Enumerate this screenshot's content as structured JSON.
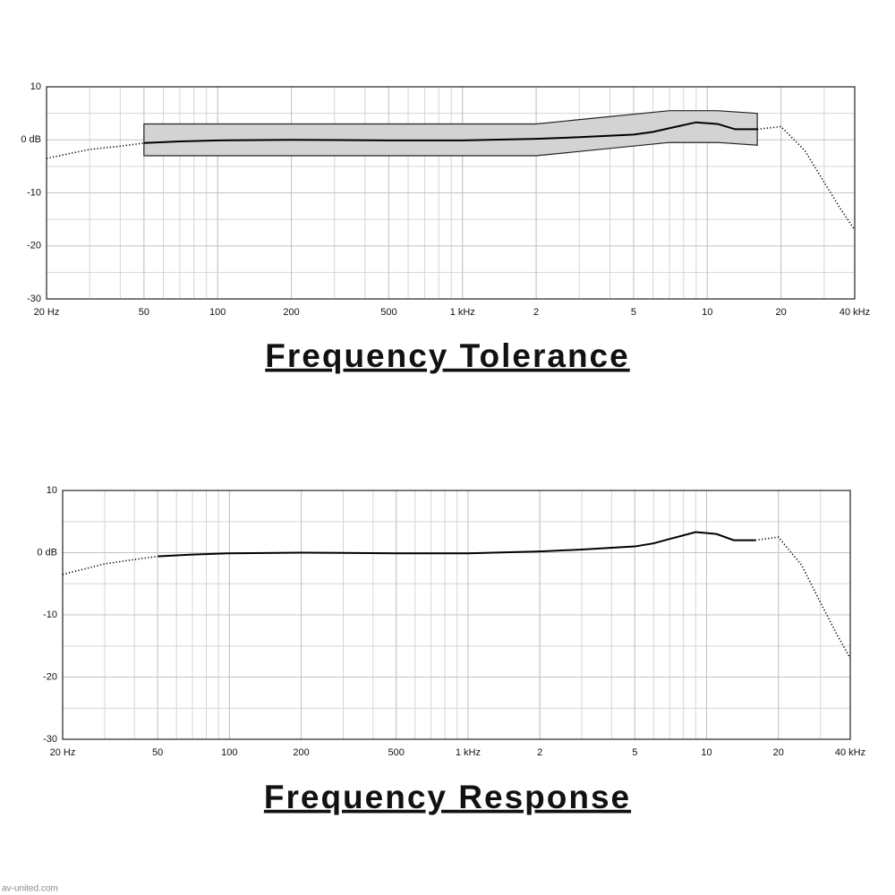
{
  "chart_data": [
    {
      "type": "line",
      "title": "Frequency Tolerance",
      "xscale": "log",
      "xlim": [
        20,
        40000
      ],
      "ylim": [
        -30,
        10
      ],
      "xticks": [
        {
          "value": 20,
          "label": "20 Hz"
        },
        50,
        100,
        200,
        500,
        {
          "value": 1000,
          "label": "1 kHz"
        },
        {
          "value": 2000,
          "label": "2"
        },
        {
          "value": 5000,
          "label": "5"
        },
        {
          "value": 10000,
          "label": "10"
        },
        {
          "value": 20000,
          "label": "20"
        },
        {
          "value": 40000,
          "label": "40 kHz"
        }
      ],
      "yticks": [
        10,
        {
          "value": 0,
          "label": "0 dB"
        },
        -10,
        -20,
        -30
      ],
      "grid": true,
      "minor_grid": true,
      "band": {
        "x": [
          50,
          2000,
          7000,
          11000,
          16000
        ],
        "upper": [
          3,
          3,
          5.5,
          5.5,
          5
        ],
        "lower": [
          -3,
          -3,
          -0.5,
          -0.5,
          -1
        ],
        "color": "#d3d3d3"
      },
      "series": [
        {
          "style": "dotted",
          "color": "#000000",
          "x": [
            20,
            30,
            40,
            50
          ],
          "values": [
            -3.5,
            -1.8,
            -1.2,
            -0.6
          ]
        },
        {
          "style": "solid",
          "color": "#000000",
          "x": [
            50,
            70,
            100,
            200,
            500,
            1000,
            2000,
            3000,
            5000,
            6000,
            7000,
            9000,
            11000,
            13000,
            16000
          ],
          "values": [
            -0.6,
            -0.3,
            -0.1,
            0,
            -0.1,
            -0.1,
            0.2,
            0.5,
            1,
            1.5,
            2.2,
            3.3,
            3,
            2,
            2
          ]
        },
        {
          "style": "dotted",
          "color": "#000000",
          "x": [
            16000,
            20000,
            25000,
            30000,
            35000,
            40000
          ],
          "values": [
            2,
            2.5,
            -2,
            -8,
            -13,
            -17
          ]
        }
      ]
    },
    {
      "type": "line",
      "title": "Frequency Response",
      "xscale": "log",
      "xlim": [
        20,
        40000
      ],
      "ylim": [
        -30,
        10
      ],
      "xticks": [
        {
          "value": 20,
          "label": "20 Hz"
        },
        50,
        100,
        200,
        500,
        {
          "value": 1000,
          "label": "1 kHz"
        },
        {
          "value": 2000,
          "label": "2"
        },
        {
          "value": 5000,
          "label": "5"
        },
        {
          "value": 10000,
          "label": "10"
        },
        {
          "value": 20000,
          "label": "20"
        },
        {
          "value": 40000,
          "label": "40 kHz"
        }
      ],
      "yticks": [
        10,
        {
          "value": 0,
          "label": "0 dB"
        },
        -10,
        -20,
        -30
      ],
      "grid": true,
      "minor_grid": true,
      "series": [
        {
          "style": "dotted",
          "color": "#000000",
          "x": [
            20,
            30,
            40,
            50
          ],
          "values": [
            -3.5,
            -1.8,
            -1.1,
            -0.6
          ]
        },
        {
          "style": "solid",
          "color": "#000000",
          "x": [
            50,
            70,
            100,
            200,
            500,
            1000,
            2000,
            3000,
            5000,
            6000,
            7000,
            9000,
            11000,
            13000,
            16000
          ],
          "values": [
            -0.6,
            -0.3,
            -0.1,
            0,
            -0.1,
            -0.1,
            0.2,
            0.5,
            1,
            1.5,
            2.2,
            3.3,
            3,
            2,
            2
          ]
        },
        {
          "style": "dotted",
          "color": "#000000",
          "x": [
            16000,
            20000,
            25000,
            30000,
            35000,
            40000
          ],
          "values": [
            2,
            2.5,
            -2,
            -8,
            -13,
            -17
          ]
        }
      ]
    }
  ],
  "watermark": "av-united.com"
}
